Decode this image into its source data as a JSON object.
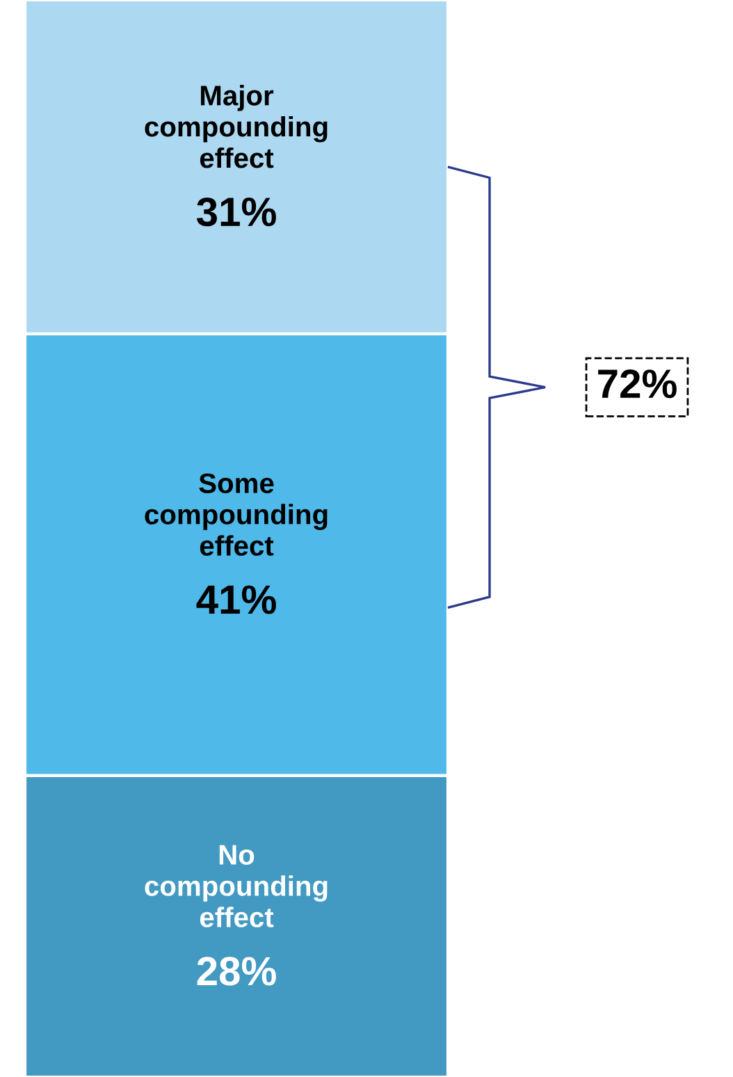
{
  "chart_data": {
    "type": "bar",
    "stacked": true,
    "categories": [
      null
    ],
    "series": [
      {
        "name": "No\ncompounding\neffect",
        "color": "#4299c2",
        "values": [
          28
        ],
        "value_labels": [
          "28%"
        ]
      },
      {
        "name": "Some\ncompounding\neffect",
        "color": "#4fb9e9",
        "values": [
          41
        ],
        "value_labels": [
          "41%"
        ]
      },
      {
        "name": "Major\ncompounding\neffect",
        "color": "#acd8f1",
        "values": [
          31
        ],
        "value_labels": [
          "31%"
        ]
      }
    ],
    "ylim": [
      0,
      100
    ],
    "annotations": [
      "72%"
    ]
  }
}
